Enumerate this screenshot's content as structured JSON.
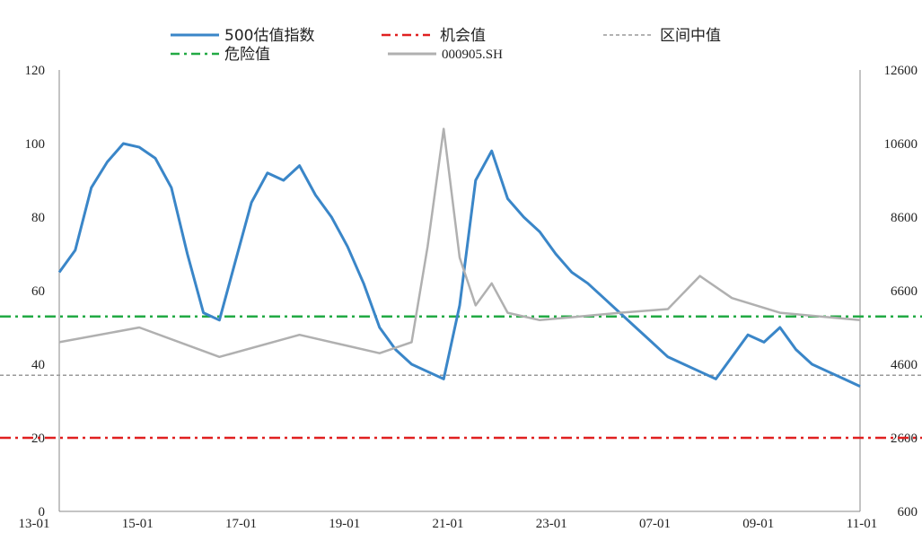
{
  "chart_data": {
    "type": "line",
    "title": "",
    "xlabel": "",
    "ylabel_left": "",
    "ylabel_right": "",
    "left_axis": {
      "ylim": [
        0,
        120
      ],
      "ticks": [
        0,
        20,
        40,
        60,
        80,
        100,
        120
      ]
    },
    "right_axis": {
      "ylim": [
        600,
        12600
      ],
      "ticks": [
        600,
        2600,
        4600,
        6600,
        8600,
        10600,
        12600
      ]
    },
    "x_ticks": [
      "13-01",
      "15-01",
      "17-01",
      "19-01",
      "21-01",
      "23-01",
      "07-01",
      "09-01",
      "11-01"
    ],
    "legend_position": "top",
    "grid": false,
    "series": [
      {
        "name": "500估值指数",
        "axis": "left",
        "style": "solid",
        "color": "#3a86c8",
        "x": [
          0,
          2,
          4,
          6,
          8,
          10,
          12,
          14,
          16,
          18,
          20,
          22,
          24,
          26,
          28,
          30,
          32,
          34,
          36,
          38,
          40,
          42,
          44,
          46,
          48,
          50,
          52,
          54,
          56,
          58,
          60,
          62,
          64,
          66,
          68,
          70,
          72,
          74,
          76,
          78,
          80,
          82,
          84,
          86,
          88,
          90,
          92,
          94,
          96,
          98,
          100
        ],
        "values": [
          65,
          71,
          88,
          95,
          100,
          99,
          96,
          88,
          70,
          54,
          52,
          68,
          84,
          92,
          90,
          94,
          86,
          80,
          72,
          62,
          50,
          44,
          40,
          38,
          36,
          56,
          90,
          98,
          85,
          80,
          76,
          70,
          65,
          62,
          58,
          54,
          50,
          46,
          42,
          40,
          38,
          36,
          42,
          48,
          46,
          50,
          44,
          40,
          38,
          36,
          34
        ]
      },
      {
        "name": "000905.SH",
        "axis": "right",
        "style": "solid",
        "color": "#b0b0b0",
        "x": [
          0,
          10,
          20,
          30,
          40,
          44,
          46,
          48,
          50,
          52,
          54,
          56,
          60,
          70,
          76,
          80,
          84,
          90,
          100
        ],
        "values": [
          5200,
          5600,
          4800,
          5400,
          4900,
          5200,
          7800,
          11000,
          7500,
          6200,
          6800,
          6000,
          5800,
          6000,
          6100,
          7000,
          6400,
          6000,
          5800
        ]
      }
    ],
    "reference_lines": [
      {
        "name": "机会值",
        "axis": "left",
        "value": 20,
        "style": "dash-dot",
        "color": "#e02020"
      },
      {
        "name": "危险值",
        "axis": "left",
        "value": 53,
        "style": "dash-dot",
        "color": "#22aa44"
      },
      {
        "name": "区间中值",
        "axis": "left",
        "value": 37,
        "style": "dashed",
        "color": "#999999"
      }
    ]
  }
}
